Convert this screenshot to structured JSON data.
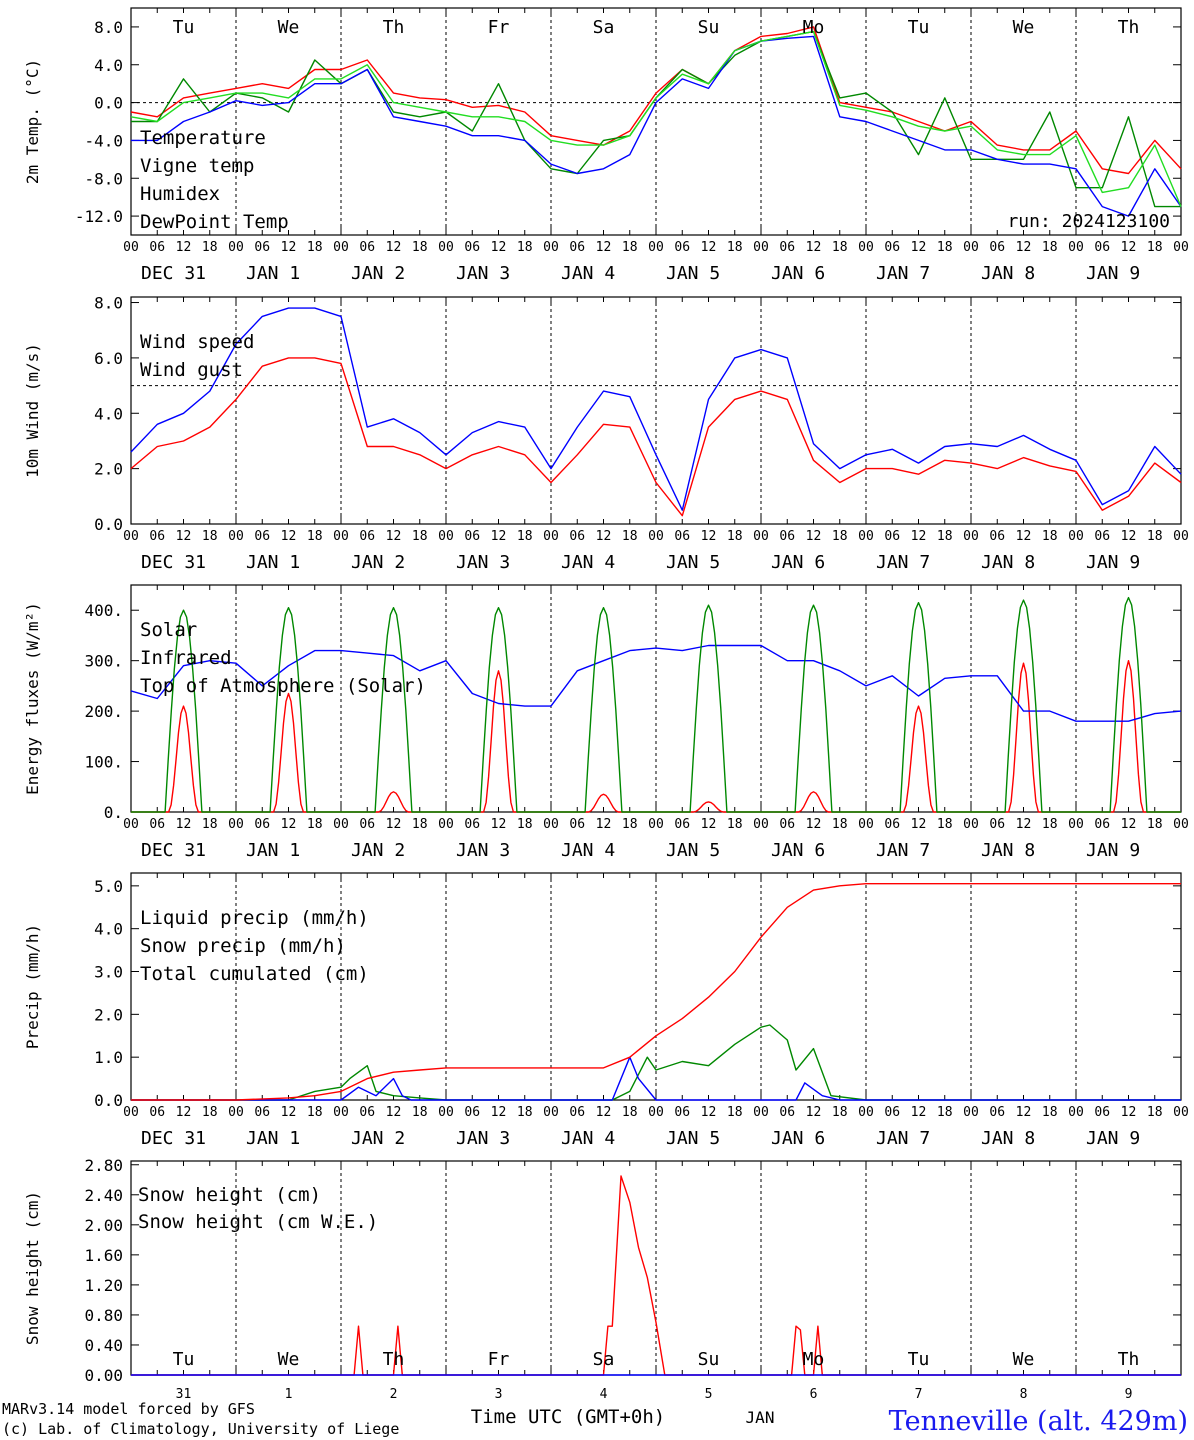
{
  "colors": {
    "red": "#ff0000",
    "green": "#008800",
    "blue": "#0000ff",
    "lightgreen": "#22dd22",
    "title": "#1a1aee"
  },
  "header": {
    "days": [
      "Tu",
      "We",
      "Th",
      "Fr",
      "Sa",
      "Su",
      "Mo",
      "Tu",
      "We",
      "Th"
    ],
    "weekend": [
      false,
      false,
      false,
      false,
      true,
      true,
      false,
      false,
      false,
      false
    ],
    "hour_labels": [
      "00",
      "06",
      "12",
      "18"
    ],
    "final_hour": "00",
    "date_labels": [
      "DEC 31",
      "JAN  1",
      "JAN  2",
      "JAN  3",
      "JAN  4",
      "JAN  5",
      "JAN  6",
      "JAN  7",
      "JAN  8",
      "JAN  9"
    ]
  },
  "footer": {
    "day_numbers": [
      "31",
      "1",
      "2",
      "3",
      "4",
      "5",
      "6",
      "7",
      "8",
      "9"
    ],
    "xlabel": "Time UTC (GMT+0h)",
    "month": "JAN",
    "credit1": "MARv3.14 model forced by GFS",
    "credit2": "(c) Lab. of Climatology, University of Liege",
    "station": "Tenneville (alt. 429m)"
  },
  "chart_data": [
    {
      "type": "line",
      "ylabel": "2m Temp. (°C)",
      "ylim": [
        -14,
        10
      ],
      "yticks": [
        "8.0",
        "4.0",
        "0.0",
        "-4.0",
        "-8.0",
        "-12.0"
      ],
      "ytick_values": [
        8,
        4,
        0,
        -4,
        -8,
        -12
      ],
      "run_label": "run: 2024123100",
      "series": [
        {
          "name": "Temperature",
          "color": "red",
          "x": [
            0,
            6,
            12,
            18,
            24,
            30,
            36,
            42,
            48,
            54,
            60,
            66,
            72,
            78,
            84,
            90,
            96,
            102,
            108,
            114,
            120,
            126,
            132,
            138,
            144,
            150,
            156,
            162,
            168,
            174,
            180,
            186,
            192,
            198,
            204,
            210,
            216,
            222,
            228,
            234,
            240
          ],
          "values": [
            -1,
            -1.5,
            0.5,
            1,
            1.5,
            2,
            1.5,
            3.5,
            3.5,
            4.5,
            1,
            0.5,
            0.3,
            -0.5,
            -0.3,
            -1,
            -3.5,
            -4,
            -4.5,
            -3,
            1,
            3.5,
            2,
            5.5,
            7,
            7.3,
            8,
            0,
            -0.5,
            -1,
            -2,
            -3,
            -2,
            -4.5,
            -5,
            -5,
            -3,
            -7,
            -7.5,
            -4,
            -7
          ]
        },
        {
          "name": "Vigne temp",
          "color": "green",
          "x": [
            0,
            6,
            12,
            18,
            24,
            30,
            36,
            42,
            48,
            54,
            60,
            66,
            72,
            78,
            84,
            90,
            96,
            102,
            108,
            114,
            120,
            126,
            132,
            138,
            144,
            150,
            156,
            162,
            168,
            174,
            180,
            186,
            192,
            198,
            204,
            210,
            216,
            222,
            228,
            234,
            240
          ],
          "values": [
            -2,
            -2,
            2.5,
            -1,
            1,
            0.5,
            -1,
            4.5,
            2,
            3.5,
            -1,
            -1.5,
            -1,
            -3,
            2,
            -4,
            -7,
            -7.5,
            -4,
            -3.5,
            0.5,
            3.5,
            2,
            5,
            6.5,
            7,
            7.5,
            0.5,
            1,
            -1,
            -5.5,
            0.5,
            -6,
            -6,
            -6,
            -1,
            -9,
            -9,
            -1.5,
            -11,
            -11
          ]
        },
        {
          "name": "Humidex",
          "color": "blue",
          "x": [
            0,
            6,
            12,
            18,
            24,
            30,
            36,
            42,
            48,
            54,
            60,
            66,
            72,
            78,
            84,
            90,
            96,
            102,
            108,
            114,
            120,
            126,
            132,
            138,
            144,
            150,
            156,
            162,
            168,
            174,
            180,
            186,
            192,
            198,
            204,
            210,
            216,
            222,
            228,
            234,
            240
          ],
          "values": [
            -4,
            -4,
            -2,
            -1,
            0.2,
            -0.3,
            0,
            2,
            2,
            3.5,
            -1.5,
            -2,
            -2.5,
            -3.5,
            -3.5,
            -4,
            -6.5,
            -7.5,
            -7,
            -5.5,
            0,
            2.5,
            1.5,
            5.5,
            6.5,
            6.8,
            7,
            -1.5,
            -2,
            -3,
            -4,
            -5,
            -5,
            -6,
            -6.5,
            -6.5,
            -7,
            -11,
            -12,
            -7,
            -11
          ]
        },
        {
          "name": "DewPoint Temp",
          "color": "lightgreen",
          "x": [
            0,
            6,
            12,
            18,
            24,
            30,
            36,
            42,
            48,
            54,
            60,
            66,
            72,
            78,
            84,
            90,
            96,
            102,
            108,
            114,
            120,
            126,
            132,
            138,
            144,
            150,
            156,
            162,
            168,
            174,
            180,
            186,
            192,
            198,
            204,
            210,
            216,
            222,
            228,
            234,
            240
          ],
          "values": [
            -1.5,
            -2,
            0,
            0.5,
            1,
            1,
            0.5,
            2.5,
            2.5,
            4,
            0,
            -0.5,
            -1,
            -1.5,
            -1.5,
            -2,
            -4,
            -4.5,
            -4.5,
            -3.5,
            0.5,
            3,
            2,
            5.5,
            6.5,
            7,
            7.5,
            -0.3,
            -0.8,
            -1.5,
            -2.5,
            -3,
            -2.5,
            -5,
            -5.5,
            -5.5,
            -3.5,
            -9.5,
            -9,
            -4.5,
            -11
          ]
        }
      ]
    },
    {
      "type": "line",
      "ylabel": "10m Wind (m/s)",
      "ylim": [
        0,
        8.2
      ],
      "yticks": [
        "8.0",
        "6.0",
        "4.0",
        "2.0",
        "0.0"
      ],
      "ytick_values": [
        8,
        6,
        4,
        2,
        0
      ],
      "series": [
        {
          "name": "Wind speed",
          "color": "red",
          "x": [
            0,
            6,
            12,
            18,
            24,
            30,
            36,
            42,
            48,
            54,
            60,
            66,
            72,
            78,
            84,
            90,
            96,
            102,
            108,
            114,
            120,
            126,
            132,
            138,
            144,
            150,
            156,
            162,
            168,
            174,
            180,
            186,
            192,
            198,
            204,
            210,
            216,
            222,
            228,
            234,
            240
          ],
          "values": [
            2,
            2.8,
            3,
            3.5,
            4.5,
            5.7,
            6,
            6,
            5.8,
            2.8,
            2.8,
            2.5,
            2,
            2.5,
            2.8,
            2.5,
            1.5,
            2.5,
            3.6,
            3.5,
            1.5,
            0.3,
            3.5,
            4.5,
            4.8,
            4.5,
            2.3,
            1.5,
            2,
            2,
            1.8,
            2.3,
            2.2,
            2,
            2.4,
            2.1,
            1.9,
            0.5,
            1,
            2.2,
            1.5
          ]
        },
        {
          "name": "Wind gust",
          "color": "blue",
          "x": [
            0,
            6,
            12,
            18,
            24,
            30,
            36,
            42,
            48,
            54,
            60,
            66,
            72,
            78,
            84,
            90,
            96,
            102,
            108,
            114,
            120,
            126,
            132,
            138,
            144,
            150,
            156,
            162,
            168,
            174,
            180,
            186,
            192,
            198,
            204,
            210,
            216,
            222,
            228,
            234,
            240
          ],
          "values": [
            2.6,
            3.6,
            4,
            4.8,
            6.5,
            7.5,
            7.8,
            7.8,
            7.5,
            3.5,
            3.8,
            3.3,
            2.5,
            3.3,
            3.7,
            3.5,
            2,
            3.5,
            4.8,
            4.6,
            2.5,
            0.5,
            4.5,
            6,
            6.3,
            6,
            2.9,
            2,
            2.5,
            2.7,
            2.2,
            2.8,
            2.9,
            2.8,
            3.2,
            2.7,
            2.3,
            0.7,
            1.2,
            2.8,
            1.8
          ]
        }
      ]
    },
    {
      "type": "line",
      "ylabel": "Energy fluxes (W/m²)",
      "ylim": [
        0,
        450
      ],
      "yticks": [
        "400.",
        "300.",
        "200.",
        "100.",
        "0."
      ],
      "ytick_values": [
        400,
        300,
        200,
        100,
        0
      ],
      "series": [
        {
          "name": "Solar",
          "color": "red",
          "daily_peaks": [
            210,
            235,
            40,
            280,
            35,
            20,
            40,
            210,
            295,
            300
          ]
        },
        {
          "name": "Infrared",
          "color": "blue",
          "x": [
            0,
            6,
            12,
            18,
            24,
            30,
            36,
            42,
            48,
            54,
            60,
            66,
            72,
            78,
            84,
            90,
            96,
            102,
            108,
            114,
            120,
            126,
            132,
            138,
            144,
            150,
            156,
            162,
            168,
            174,
            180,
            186,
            192,
            198,
            204,
            210,
            216,
            222,
            228,
            234,
            240
          ],
          "values": [
            240,
            225,
            290,
            300,
            295,
            250,
            290,
            320,
            320,
            315,
            310,
            280,
            300,
            235,
            215,
            210,
            210,
            280,
            300,
            320,
            325,
            320,
            330,
            330,
            330,
            300,
            300,
            280,
            250,
            270,
            230,
            265,
            270,
            270,
            200,
            200,
            180,
            180,
            180,
            195,
            200
          ]
        },
        {
          "name": "Top of Atmosphere (Solar)",
          "color": "green",
          "daily_peaks": [
            400,
            405,
            405,
            405,
            405,
            410,
            410,
            415,
            420,
            425
          ]
        }
      ]
    },
    {
      "type": "line",
      "ylabel": "Precip (mm/h)",
      "ylim": [
        0,
        5.3
      ],
      "yticks": [
        "5.0",
        "4.0",
        "3.0",
        "2.0",
        "1.0",
        "0.0"
      ],
      "ytick_values": [
        5,
        4,
        3,
        2,
        1,
        0
      ],
      "series": [
        {
          "name": "Liquid precip (mm/h)",
          "color": "green",
          "x": [
            0,
            24,
            36,
            42,
            48,
            50,
            54,
            56,
            60,
            66,
            72,
            96,
            108,
            110,
            114,
            118,
            120,
            126,
            132,
            138,
            144,
            146,
            150,
            152,
            156,
            160,
            168,
            240
          ],
          "values": [
            0,
            0,
            0,
            0.2,
            0.3,
            0.5,
            0.8,
            0.2,
            0.1,
            0.05,
            0,
            0,
            0,
            0,
            0.2,
            1,
            0.7,
            0.9,
            0.8,
            1.3,
            1.7,
            1.75,
            1.4,
            0.7,
            1.2,
            0.1,
            0,
            0
          ]
        },
        {
          "name": "Snow precip (mm/h)",
          "color": "blue",
          "x": [
            0,
            48,
            52,
            56,
            60,
            62,
            64,
            72,
            96,
            110,
            114,
            116,
            120,
            152,
            154,
            158,
            162,
            240
          ],
          "values": [
            0,
            0,
            0.3,
            0.1,
            0.5,
            0.1,
            0,
            0,
            0,
            0,
            1,
            0.5,
            0,
            0,
            0.4,
            0.1,
            0,
            0
          ]
        },
        {
          "name": "Total cumulated (cm)",
          "color": "red",
          "x": [
            0,
            24,
            36,
            42,
            48,
            54,
            60,
            66,
            72,
            84,
            96,
            108,
            114,
            120,
            126,
            132,
            138,
            144,
            150,
            156,
            162,
            168,
            192,
            240
          ],
          "values": [
            0,
            0,
            0.05,
            0.1,
            0.2,
            0.5,
            0.65,
            0.7,
            0.75,
            0.75,
            0.75,
            0.75,
            1,
            1.5,
            1.9,
            2.4,
            3,
            3.8,
            4.5,
            4.9,
            5,
            5.05,
            5.05,
            5.05
          ]
        }
      ]
    },
    {
      "type": "line",
      "ylabel": "Snow height (cm)",
      "ylim": [
        0,
        2.85
      ],
      "yticks": [
        "2.80",
        "2.40",
        "2.00",
        "1.60",
        "1.20",
        "0.80",
        "0.40",
        "0.00"
      ],
      "ytick_values": [
        2.8,
        2.4,
        2,
        1.6,
        1.2,
        0.8,
        0.4,
        0
      ],
      "series": [
        {
          "name": "Snow height (cm)",
          "color": "red",
          "x": [
            0,
            51,
            52,
            53,
            60,
            61,
            62,
            108,
            109,
            110,
            112,
            114,
            116,
            118,
            120,
            122,
            123,
            151,
            152,
            153,
            154,
            156,
            157,
            158,
            240
          ],
          "values": [
            0,
            0,
            0.65,
            0,
            0,
            0.65,
            0,
            0,
            0.65,
            0.65,
            2.65,
            2.3,
            1.7,
            1.3,
            0.7,
            0,
            0,
            0,
            0.65,
            0.6,
            0,
            0,
            0.65,
            0,
            0
          ]
        },
        {
          "name": "Snow height (cm W.E.)",
          "color": "blue",
          "x": [
            0,
            240
          ],
          "values": [
            0,
            0
          ]
        }
      ]
    }
  ]
}
